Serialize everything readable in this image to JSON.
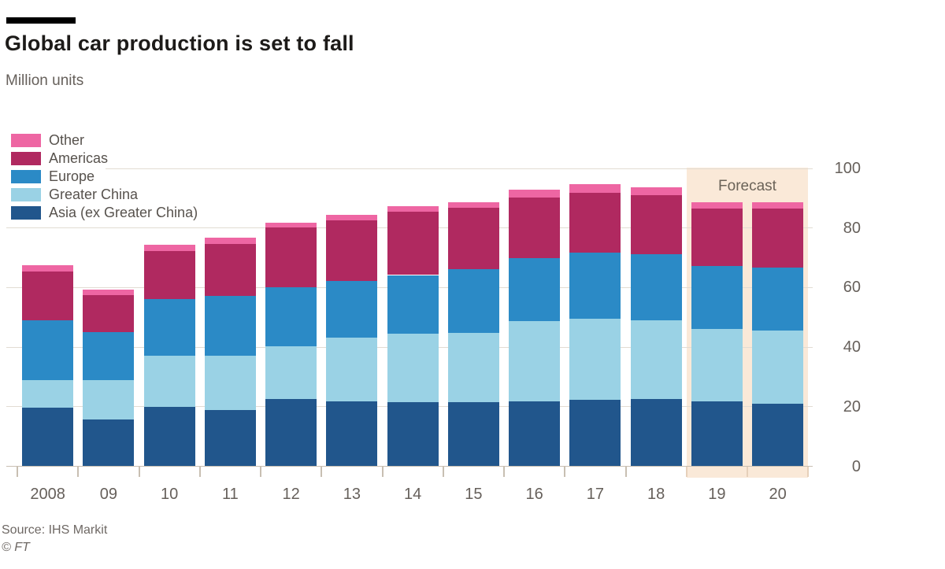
{
  "header": {
    "title": "Global car production is set to fall",
    "subtitle": "Million units"
  },
  "footer": {
    "source": "Source: IHS Markit",
    "copyright": "© FT"
  },
  "chart_data": {
    "type": "bar",
    "stacked": true,
    "title": "Global car production is set to fall",
    "subtitle": "Million units",
    "ylabel": "Million units",
    "xlabel": "",
    "grid": "horizontal",
    "legend_position": "top-left-overlay",
    "categories": [
      "2008",
      "09",
      "10",
      "11",
      "12",
      "13",
      "14",
      "15",
      "16",
      "17",
      "18",
      "19",
      "20"
    ],
    "series": [
      {
        "name": "Asia (ex Greater China)",
        "color": "#21568c",
        "values": [
          19.6,
          15.7,
          20.0,
          18.9,
          22.5,
          21.7,
          21.5,
          21.5,
          21.7,
          22.2,
          22.6,
          21.7,
          21.0
        ]
      },
      {
        "name": "Greater China",
        "color": "#9ad2e5",
        "values": [
          9.3,
          13.1,
          17.1,
          18.2,
          17.8,
          21.6,
          23.0,
          23.4,
          27.1,
          27.3,
          26.5,
          24.3,
          24.7
        ]
      },
      {
        "name": "Europe",
        "color": "#2b8ac6",
        "values": [
          20.2,
          16.3,
          19.0,
          20.1,
          19.9,
          19.0,
          19.7,
          21.3,
          21.0,
          22.3,
          22.1,
          21.2,
          21.0
        ]
      },
      {
        "name": "Americas",
        "color": "#b02960",
        "values": [
          16.3,
          12.4,
          16.1,
          17.4,
          19.9,
          20.3,
          21.2,
          20.5,
          20.5,
          20.1,
          19.8,
          19.2,
          19.7
        ]
      },
      {
        "name": "Other",
        "color": "#ee66a3",
        "values": [
          2.2,
          1.8,
          2.2,
          2.2,
          1.8,
          1.8,
          1.8,
          2.0,
          2.5,
          2.8,
          2.7,
          2.3,
          2.2
        ]
      }
    ],
    "legend_top_to_bottom": [
      "Other",
      "Americas",
      "Europe",
      "Greater China",
      "Asia (ex Greater China)"
    ],
    "y_ticks": [
      0,
      20,
      40,
      60,
      80,
      100
    ],
    "ylim": [
      0,
      100
    ],
    "forecast": {
      "label": "Forecast",
      "categories": [
        "19",
        "20"
      ],
      "band_color": "#fae9d8"
    }
  }
}
